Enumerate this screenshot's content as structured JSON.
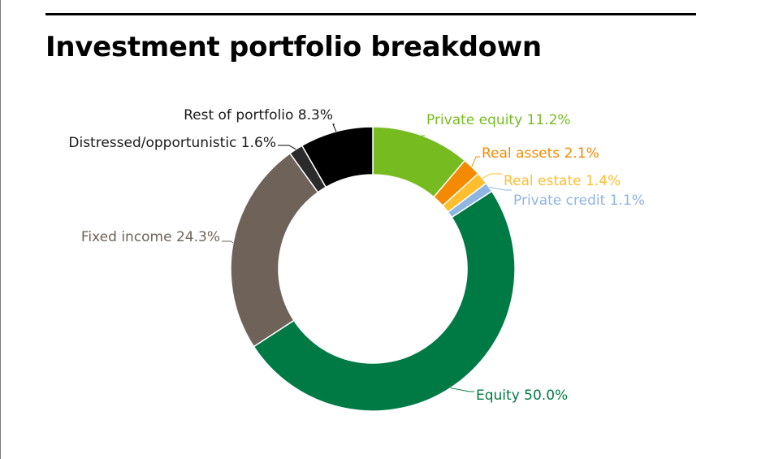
{
  "chart_data": {
    "type": "pie",
    "title": "Investment portfolio breakdown",
    "slices": [
      {
        "label": "Private equity",
        "value": 11.2,
        "display": "Private equity 11.2%",
        "color": "#76bc21"
      },
      {
        "label": "Real assets",
        "value": 2.1,
        "display": "Real assets 2.1%",
        "color": "#f38a00"
      },
      {
        "label": "Real estate",
        "value": 1.4,
        "display": "Real estate 1.4%",
        "color": "#ffbe2e"
      },
      {
        "label": "Private credit",
        "value": 1.1,
        "display": "Private credit 1.1%",
        "color": "#8fb5e3"
      },
      {
        "label": "Equity",
        "value": 50.0,
        "display": "Equity 50.0%",
        "color": "#007a44"
      },
      {
        "label": "Fixed income",
        "value": 24.3,
        "display": "Fixed income 24.3%",
        "color": "#6e6259"
      },
      {
        "label": "Distressed/opportunistic",
        "value": 1.6,
        "display": "Distressed/opportunistic 1.6%",
        "color": "#2b2b2b"
      },
      {
        "label": "Rest of portfolio",
        "value": 8.3,
        "display": "Rest of portfolio 8.3%",
        "color": "#000000"
      }
    ],
    "legend": "none"
  }
}
